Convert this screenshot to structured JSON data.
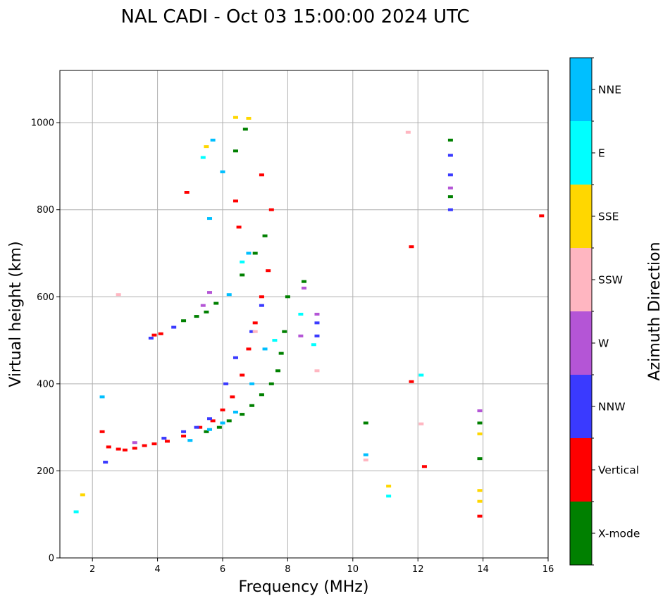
{
  "chart_data": {
    "type": "scatter",
    "title": "NAL CADI - Oct 03 15:00:00 2024 UTC",
    "xlabel": "Frequency (MHz)",
    "ylabel": "Virtual height (km)",
    "xlim": [
      1,
      16
    ],
    "ylim": [
      0,
      1120
    ],
    "xticks": [
      2,
      4,
      6,
      8,
      10,
      12,
      14,
      16
    ],
    "yticks": [
      0,
      200,
      400,
      600,
      800,
      1000
    ],
    "grid": true,
    "colorbar": {
      "title": "Azimuth Direction",
      "categories": [
        {
          "name": "X-mode",
          "color": "#008000"
        },
        {
          "name": "Vertical",
          "color": "#ff0000"
        },
        {
          "name": "NNW",
          "color": "#3a3aff"
        },
        {
          "name": "W",
          "color": "#b455d6"
        },
        {
          "name": "SSW",
          "color": "#ffb6c1"
        },
        {
          "name": "SSE",
          "color": "#ffd700"
        },
        {
          "name": "E",
          "color": "#00ffff"
        },
        {
          "name": "NNE",
          "color": "#00bfff"
        }
      ]
    },
    "series": [
      {
        "name": "Vertical",
        "points": [
          [
            2.3,
            290
          ],
          [
            2.5,
            255
          ],
          [
            2.8,
            250
          ],
          [
            3.0,
            248
          ],
          [
            3.3,
            252
          ],
          [
            3.6,
            258
          ],
          [
            3.9,
            262
          ],
          [
            4.3,
            268
          ],
          [
            4.8,
            280
          ],
          [
            5.3,
            300
          ],
          [
            5.7,
            315
          ],
          [
            6.0,
            340
          ],
          [
            6.3,
            370
          ],
          [
            6.6,
            420
          ],
          [
            6.8,
            480
          ],
          [
            7.0,
            540
          ],
          [
            7.2,
            600
          ],
          [
            7.4,
            660
          ],
          [
            6.5,
            760
          ],
          [
            6.4,
            820
          ],
          [
            3.9,
            512
          ],
          [
            4.1,
            515
          ],
          [
            7.2,
            880
          ],
          [
            7.5,
            800
          ],
          [
            4.9,
            840
          ],
          [
            11.8,
            405
          ],
          [
            12.2,
            210
          ],
          [
            13.9,
            96
          ],
          [
            15.8,
            786
          ],
          [
            11.8,
            715
          ]
        ]
      },
      {
        "name": "X-mode",
        "points": [
          [
            5.5,
            290
          ],
          [
            5.9,
            300
          ],
          [
            6.2,
            315
          ],
          [
            6.6,
            330
          ],
          [
            6.9,
            350
          ],
          [
            7.2,
            375
          ],
          [
            7.5,
            400
          ],
          [
            7.7,
            430
          ],
          [
            7.8,
            470
          ],
          [
            7.9,
            520
          ],
          [
            8.0,
            600
          ],
          [
            6.6,
            650
          ],
          [
            7.0,
            700
          ],
          [
            7.3,
            740
          ],
          [
            4.8,
            545
          ],
          [
            5.2,
            555
          ],
          [
            5.5,
            565
          ],
          [
            5.8,
            585
          ],
          [
            6.7,
            985
          ],
          [
            6.4,
            935
          ],
          [
            13.0,
            960
          ],
          [
            13.0,
            830
          ],
          [
            13.9,
            228
          ],
          [
            13.9,
            310
          ],
          [
            10.4,
            310
          ],
          [
            8.5,
            635
          ]
        ]
      },
      {
        "name": "NNW",
        "points": [
          [
            4.2,
            275
          ],
          [
            4.8,
            290
          ],
          [
            5.2,
            300
          ],
          [
            5.6,
            320
          ],
          [
            6.1,
            400
          ],
          [
            6.4,
            460
          ],
          [
            6.9,
            520
          ],
          [
            7.2,
            580
          ],
          [
            4.5,
            530
          ],
          [
            3.8,
            505
          ],
          [
            13.0,
            800
          ],
          [
            13.0,
            880
          ],
          [
            8.9,
            510
          ],
          [
            8.9,
            540
          ],
          [
            2.4,
            220
          ],
          [
            13.0,
            925
          ]
        ]
      },
      {
        "name": "W",
        "points": [
          [
            5.4,
            580
          ],
          [
            5.6,
            610
          ],
          [
            8.5,
            620
          ],
          [
            8.9,
            560
          ],
          [
            8.4,
            510
          ],
          [
            13.9,
            338
          ],
          [
            13.0,
            850
          ],
          [
            3.3,
            265
          ]
        ]
      },
      {
        "name": "SSW",
        "points": [
          [
            8.9,
            430
          ],
          [
            12.1,
            308
          ],
          [
            2.8,
            605
          ],
          [
            11.7,
            978
          ],
          [
            7.0,
            520
          ],
          [
            10.4,
            225
          ]
        ]
      },
      {
        "name": "SSE",
        "points": [
          [
            5.5,
            945
          ],
          [
            6.4,
            1012
          ],
          [
            13.9,
            130
          ],
          [
            13.9,
            155
          ],
          [
            13.9,
            285
          ],
          [
            11.1,
            165
          ],
          [
            1.7,
            145
          ],
          [
            6.8,
            1010
          ]
        ]
      },
      {
        "name": "E",
        "points": [
          [
            1.5,
            106
          ],
          [
            6.6,
            680
          ],
          [
            7.6,
            500
          ],
          [
            8.4,
            560
          ],
          [
            11.1,
            142
          ],
          [
            12.1,
            420
          ],
          [
            5.4,
            920
          ],
          [
            8.8,
            490
          ]
        ]
      },
      {
        "name": "NNE",
        "points": [
          [
            5.0,
            270
          ],
          [
            5.6,
            295
          ],
          [
            6.0,
            310
          ],
          [
            6.4,
            335
          ],
          [
            6.9,
            400
          ],
          [
            7.3,
            480
          ],
          [
            2.3,
            370
          ],
          [
            6.2,
            605
          ],
          [
            6.8,
            700
          ],
          [
            6.0,
            887
          ],
          [
            10.4,
            237
          ],
          [
            5.7,
            960
          ],
          [
            5.6,
            780
          ]
        ]
      }
    ]
  }
}
